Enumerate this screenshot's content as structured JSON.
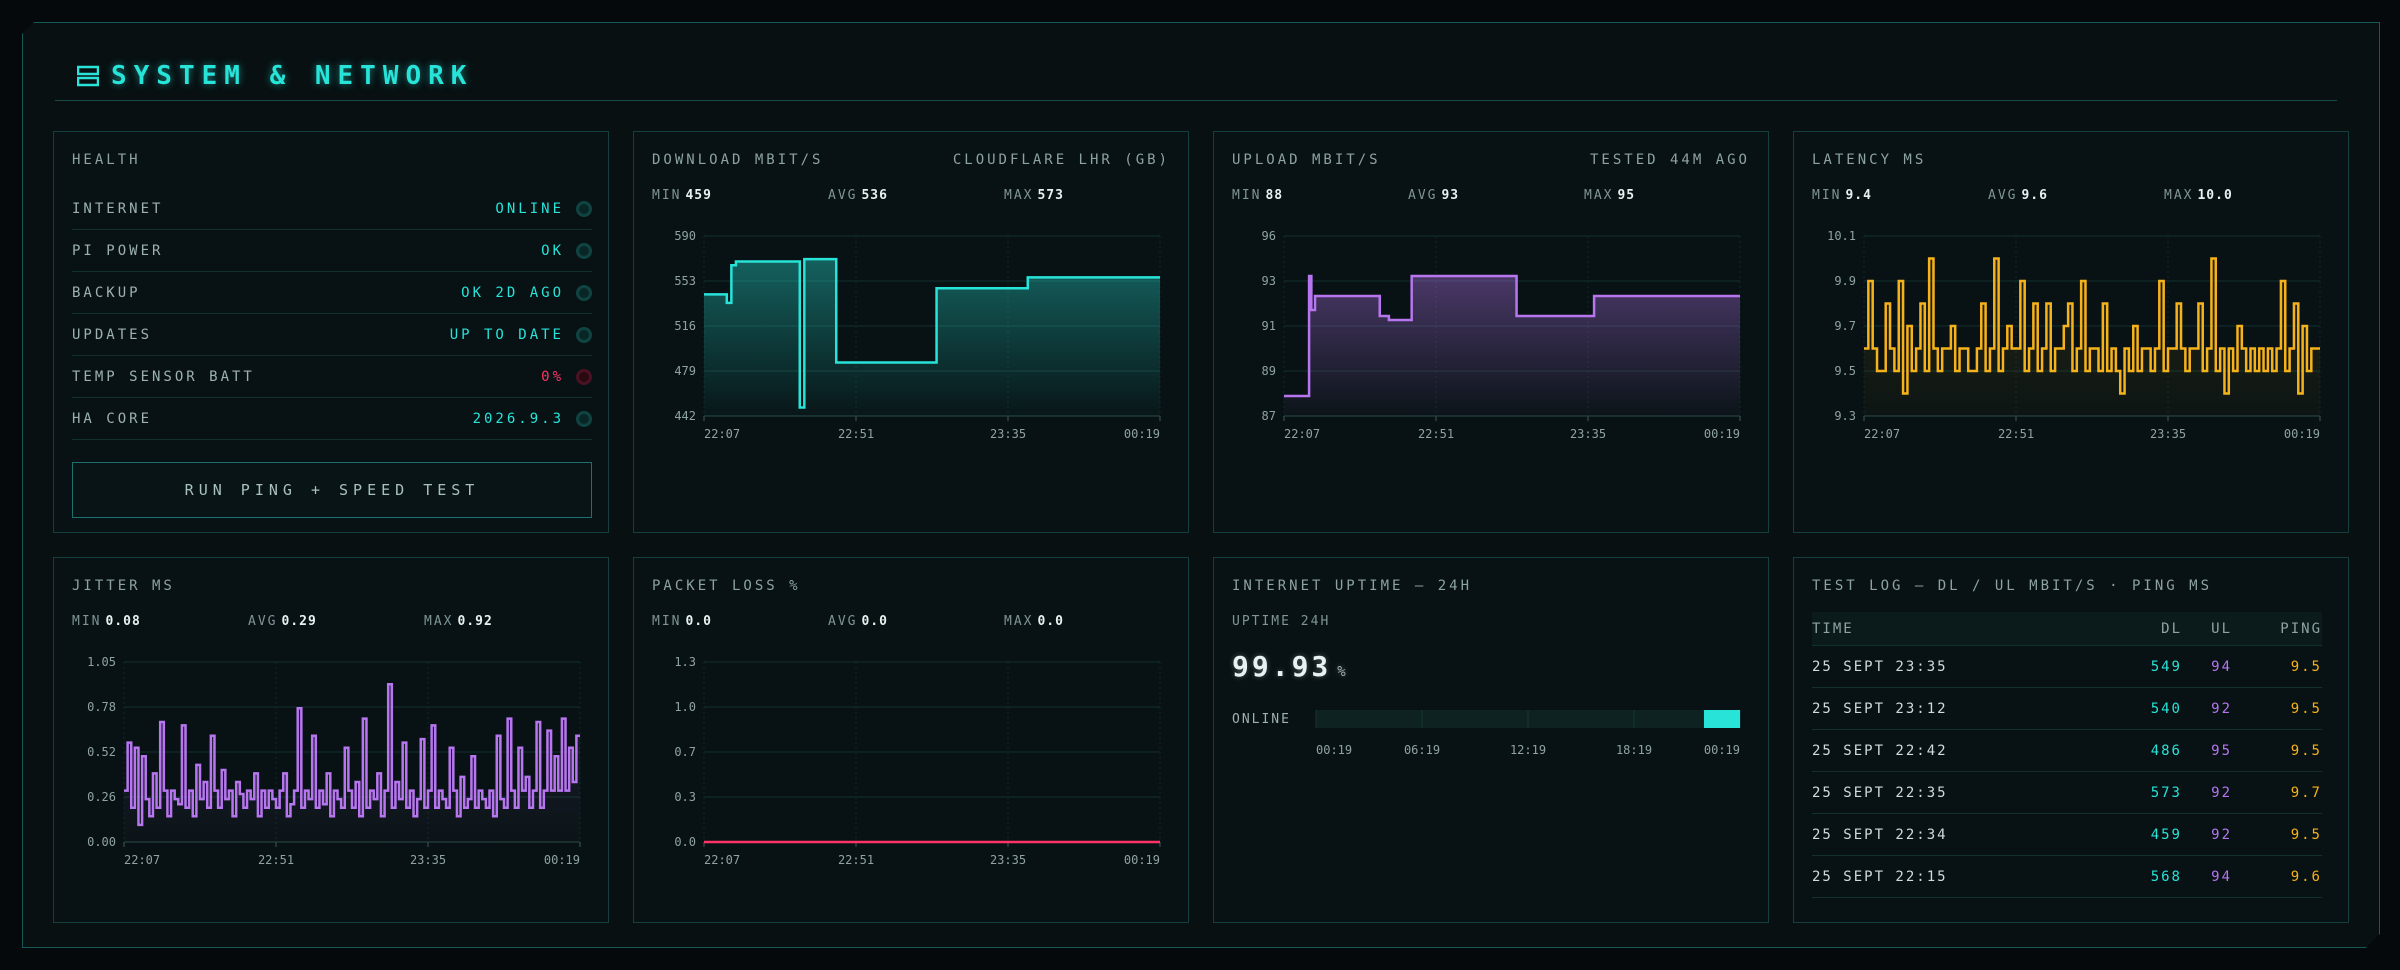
{
  "header": {
    "title": "SYSTEM & NETWORK",
    "icon": "server-icon"
  },
  "colors": {
    "cyan": "#27e3d8",
    "purple": "#b776f0",
    "amber": "#f6b21b",
    "red": "#ff3366"
  },
  "health": {
    "title": "HEALTH",
    "items": [
      {
        "label": "INTERNET",
        "value": "ONLINE",
        "status": "ok"
      },
      {
        "label": "PI POWER",
        "value": "OK",
        "status": "ok"
      },
      {
        "label": "BACKUP",
        "value": "OK 2D AGO",
        "status": "ok"
      },
      {
        "label": "UPDATES",
        "value": "UP TO DATE",
        "status": "ok"
      },
      {
        "label": "TEMP SENSOR BATT",
        "value": "0%",
        "status": "error"
      },
      {
        "label": "HA CORE",
        "value": "2026.9.3",
        "status": "ok"
      }
    ],
    "button_label": "RUN PING + SPEED TEST"
  },
  "download": {
    "title": "DOWNLOAD MBIT/S",
    "subtitle": "CLOUDFLARE LHR (GB)",
    "min_label": "MIN",
    "min": "459",
    "avg_label": "AVG",
    "avg": "536",
    "max_label": "MAX",
    "max": "573"
  },
  "upload": {
    "title": "UPLOAD MBIT/S",
    "subtitle": "TESTED 44M AGO",
    "min_label": "MIN",
    "min": "88",
    "avg_label": "AVG",
    "avg": "93",
    "max_label": "MAX",
    "max": "95"
  },
  "latency": {
    "title": "LATENCY MS",
    "min_label": "MIN",
    "min": "9.4",
    "avg_label": "AVG",
    "avg": "9.6",
    "max_label": "MAX",
    "max": "10.0"
  },
  "jitter": {
    "title": "JITTER MS",
    "min_label": "MIN",
    "min": "0.08",
    "avg_label": "AVG",
    "avg": "0.29",
    "max_label": "MAX",
    "max": "0.92"
  },
  "packetloss": {
    "title": "PACKET LOSS %",
    "min_label": "MIN",
    "min": "0.0",
    "avg_label": "AVG",
    "avg": "0.0",
    "max_label": "MAX",
    "max": "0.0"
  },
  "uptime": {
    "title": "INTERNET UPTIME — 24H",
    "label": "UPTIME 24H",
    "value": "99.93",
    "unit": "%",
    "row_label": "ONLINE",
    "ticks": [
      "00:19",
      "06:19",
      "12:19",
      "18:19",
      "00:19"
    ],
    "online_segment": [
      0.915,
      1.0
    ]
  },
  "testlog": {
    "title": "TEST LOG — DL / UL MBIT/S · PING MS",
    "headers": {
      "time": "TIME",
      "dl": "DL",
      "ul": "UL",
      "ping": "PING"
    },
    "rows": [
      {
        "time": "25 SEPT 23:35",
        "dl": "549",
        "ul": "94",
        "ping": "9.5"
      },
      {
        "time": "25 SEPT 23:12",
        "dl": "540",
        "ul": "92",
        "ping": "9.5"
      },
      {
        "time": "25 SEPT 22:42",
        "dl": "486",
        "ul": "95",
        "ping": "9.5"
      },
      {
        "time": "25 SEPT 22:35",
        "dl": "573",
        "ul": "92",
        "ping": "9.7"
      },
      {
        "time": "25 SEPT 22:34",
        "dl": "459",
        "ul": "92",
        "ping": "9.5"
      },
      {
        "time": "25 SEPT 22:15",
        "dl": "568",
        "ul": "94",
        "ping": "9.6"
      }
    ]
  },
  "chart_data": [
    {
      "id": "download",
      "type": "area",
      "color": "#27e3d8",
      "x_ticks": [
        "22:07",
        "22:51",
        "23:35",
        "00:19"
      ],
      "y_ticks": [
        "590",
        "553",
        "516",
        "479",
        "442"
      ],
      "ylim": [
        442,
        590
      ],
      "x": [
        0,
        0.05,
        0.06,
        0.07,
        0.2,
        0.21,
        0.22,
        0.28,
        0.29,
        0.5,
        0.51,
        0.7,
        0.71,
        1.0
      ],
      "y": [
        542,
        535,
        566,
        569,
        569,
        449,
        571,
        571,
        486,
        486,
        547,
        547,
        556,
        556
      ],
      "grid": true
    },
    {
      "id": "upload",
      "type": "area",
      "color": "#b776f0",
      "x_ticks": [
        "22:07",
        "22:51",
        "23:35",
        "00:19"
      ],
      "y_ticks": [
        "96",
        "93",
        "91",
        "89",
        "87"
      ],
      "ylim": [
        87,
        96
      ],
      "x": [
        0,
        0.05,
        0.055,
        0.06,
        0.068,
        0.2,
        0.21,
        0.23,
        0.27,
        0.28,
        0.5,
        0.51,
        0.67,
        0.68,
        1.0
      ],
      "y": [
        88,
        88,
        94,
        92.3,
        93,
        93,
        92,
        91.8,
        91.8,
        94,
        94,
        92,
        92,
        93,
        93
      ],
      "grid": true
    },
    {
      "id": "latency",
      "type": "line",
      "color": "#f6b21b",
      "x_ticks": [
        "22:07",
        "22:51",
        "23:35",
        "00:19"
      ],
      "y_ticks": [
        "10.1",
        "9.9",
        "9.7",
        "9.5",
        "9.3"
      ],
      "ylim": [
        9.3,
        10.1
      ],
      "y": [
        9.6,
        9.9,
        9.6,
        9.5,
        9.5,
        9.8,
        9.6,
        9.5,
        9.9,
        9.4,
        9.7,
        9.5,
        9.6,
        9.8,
        9.5,
        10.0,
        9.6,
        9.5,
        9.6,
        9.6,
        9.7,
        9.5,
        9.6,
        9.6,
        9.5,
        9.5,
        9.6,
        9.8,
        9.5,
        9.6,
        10.0,
        9.5,
        9.6,
        9.7,
        9.6,
        9.6,
        9.9,
        9.5,
        9.6,
        9.8,
        9.5,
        9.6,
        9.8,
        9.5,
        9.6,
        9.6,
        9.7,
        9.8,
        9.5,
        9.6,
        9.9,
        9.5,
        9.6,
        9.6,
        9.5,
        9.8,
        9.5,
        9.6,
        9.5,
        9.4,
        9.6,
        9.5,
        9.7,
        9.5,
        9.6,
        9.6,
        9.5,
        9.6,
        9.9,
        9.5,
        9.6,
        9.6,
        9.8,
        9.6,
        9.5,
        9.6,
        9.6,
        9.8,
        9.5,
        9.6,
        10.0,
        9.5,
        9.6,
        9.4,
        9.6,
        9.5,
        9.7,
        9.6,
        9.5,
        9.6,
        9.5,
        9.6,
        9.5,
        9.6,
        9.5,
        9.6,
        9.9,
        9.5,
        9.6,
        9.8,
        9.4,
        9.7,
        9.5,
        9.6,
        9.6
      ],
      "grid": true
    },
    {
      "id": "jitter",
      "type": "line",
      "color": "#b776f0",
      "x_ticks": [
        "22:07",
        "22:51",
        "23:35",
        "00:19"
      ],
      "y_ticks": [
        "1.05",
        "0.78",
        "0.52",
        "0.26",
        "0.00"
      ],
      "ylim": [
        0,
        1.05
      ],
      "y": [
        0.3,
        0.58,
        0.2,
        0.55,
        0.1,
        0.5,
        0.25,
        0.15,
        0.4,
        0.2,
        0.7,
        0.3,
        0.15,
        0.3,
        0.25,
        0.22,
        0.68,
        0.2,
        0.3,
        0.15,
        0.45,
        0.25,
        0.35,
        0.2,
        0.62,
        0.3,
        0.2,
        0.42,
        0.25,
        0.3,
        0.15,
        0.35,
        0.28,
        0.2,
        0.3,
        0.25,
        0.4,
        0.15,
        0.3,
        0.2,
        0.3,
        0.25,
        0.2,
        0.3,
        0.4,
        0.15,
        0.22,
        0.3,
        0.78,
        0.2,
        0.3,
        0.25,
        0.62,
        0.2,
        0.3,
        0.22,
        0.4,
        0.15,
        0.3,
        0.25,
        0.2,
        0.55,
        0.3,
        0.2,
        0.35,
        0.15,
        0.72,
        0.2,
        0.3,
        0.25,
        0.4,
        0.15,
        0.3,
        0.92,
        0.2,
        0.35,
        0.25,
        0.58,
        0.2,
        0.3,
        0.15,
        0.25,
        0.6,
        0.2,
        0.3,
        0.68,
        0.2,
        0.3,
        0.25,
        0.2,
        0.55,
        0.3,
        0.15,
        0.38,
        0.2,
        0.25,
        0.5,
        0.2,
        0.3,
        0.25,
        0.2,
        0.3,
        0.15,
        0.62,
        0.25,
        0.2,
        0.72,
        0.3,
        0.2,
        0.55,
        0.3,
        0.38,
        0.2,
        0.3,
        0.7,
        0.2,
        0.3,
        0.65,
        0.3,
        0.5,
        0.3,
        0.72,
        0.3,
        0.55,
        0.35,
        0.62
      ],
      "grid": true
    },
    {
      "id": "packetloss",
      "type": "line",
      "color": "#ff3366",
      "x_ticks": [
        "22:07",
        "22:51",
        "23:35",
        "00:19"
      ],
      "y_ticks": [
        "1.3",
        "1.0",
        "0.7",
        "0.3",
        "0.0"
      ],
      "ylim": [
        0,
        1.3
      ],
      "y": [
        0,
        0
      ],
      "grid": true
    }
  ]
}
